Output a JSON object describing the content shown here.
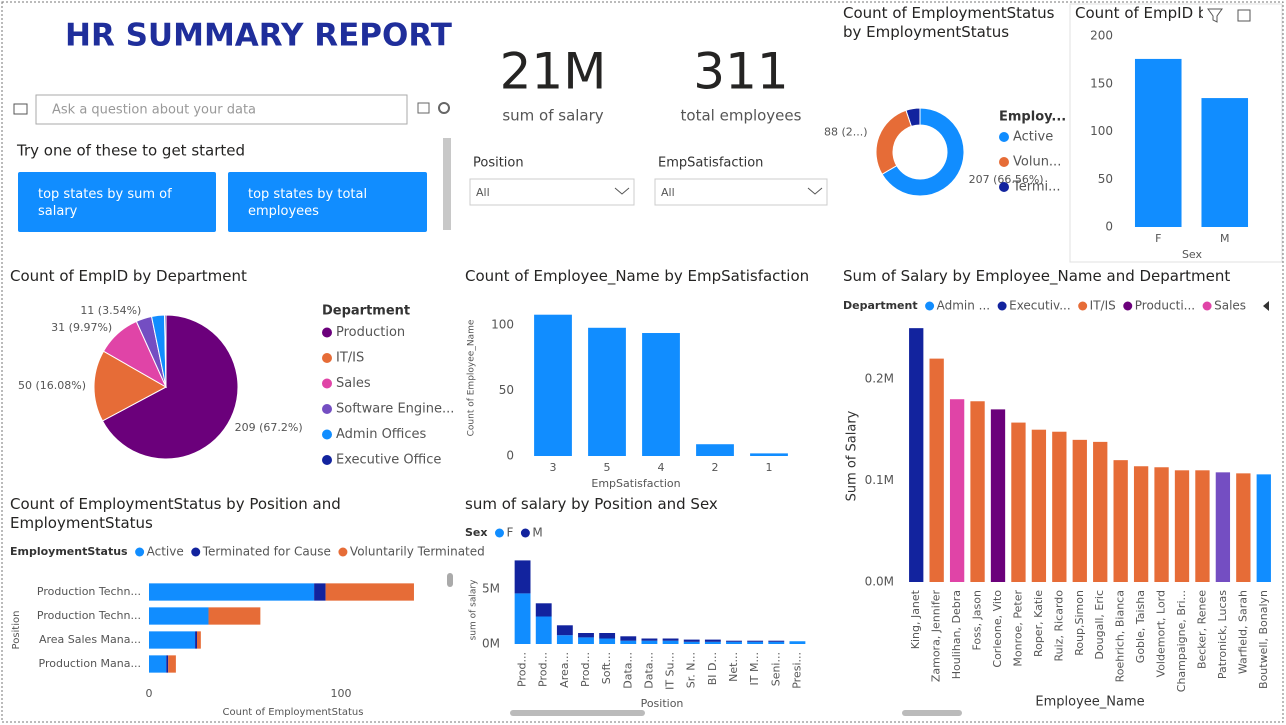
{
  "header": {
    "title": "HR SUMMARY REPORT"
  },
  "kpis": [
    {
      "value": "21M",
      "label": "sum of salary"
    },
    {
      "value": "311",
      "label": "total employees"
    }
  ],
  "qa": {
    "placeholder": "Ask a question about your data",
    "prompt": "Try one of these to get started",
    "suggestions": [
      "top states by sum of salary",
      "top states by total employees"
    ]
  },
  "slicers": [
    {
      "label": "Position",
      "value": "All"
    },
    {
      "label": "EmpSatisfaction",
      "value": "All"
    }
  ],
  "chart_data": [
    {
      "type": "donut",
      "title": "Count of EmploymentStatus by EmploymentStatus",
      "legend_title": "Employ...",
      "categories": [
        "Active",
        "Volun...",
        "Termi..."
      ],
      "values": [
        207,
        88,
        16
      ],
      "value_labels": [
        "207 (66.56%)",
        "88 (2...)",
        null
      ],
      "colors": [
        "#118DFF",
        "#E66C37",
        "#12239E"
      ]
    },
    {
      "type": "bar",
      "title": "Count of EmpID b",
      "x_label": "Sex",
      "categories": [
        "F",
        "M"
      ],
      "values": [
        176,
        135
      ],
      "color": "#118DFF",
      "ylim": [
        0,
        200
      ],
      "yticks": [
        0,
        50,
        100,
        150,
        200
      ],
      "grid": false
    },
    {
      "type": "pie",
      "title": "Count of EmpID by Department",
      "legend_title": "Department",
      "categories": [
        "Production",
        "IT/IS",
        "Sales",
        "Software Engine...",
        "Admin Offices",
        "Executive Office"
      ],
      "values": [
        209,
        50,
        31,
        11,
        9,
        1
      ],
      "value_labels": [
        "209 (67.2%)",
        "50 (16.08%)",
        "31 (9.97%)",
        "11 (3.54%)",
        null,
        null
      ],
      "colors": [
        "#6B007B",
        "#E66C37",
        "#E044A7",
        "#744EC2",
        "#118DFF",
        "#12239E"
      ]
    },
    {
      "type": "bar",
      "title": "Count of Employee_Name by EmpSatisfaction",
      "x_label": "EmpSatisfaction",
      "y_label": "Count of Employee_Name",
      "categories": [
        "3",
        "5",
        "4",
        "2",
        "1"
      ],
      "values": [
        108,
        98,
        94,
        9,
        2
      ],
      "color": "#118DFF",
      "ylim": [
        0,
        120
      ],
      "yticks": [
        0,
        50,
        100
      ],
      "grid": false
    },
    {
      "type": "bar",
      "title": "Sum of Salary by Employee_Name and Department",
      "x_label": "Employee_Name",
      "y_label": "Sum of Salary",
      "legend_title": "Department",
      "legend": [
        {
          "name": "Admin ...",
          "color": "#118DFF"
        },
        {
          "name": "Executiv...",
          "color": "#12239E"
        },
        {
          "name": "IT/IS",
          "color": "#E66C37"
        },
        {
          "name": "Producti...",
          "color": "#6B007B"
        },
        {
          "name": "Sales",
          "color": "#E044A7"
        }
      ],
      "categories": [
        "King, Janet",
        "Zamora, Jennifer",
        "Houlihan, Debra",
        "Foss, Jason",
        "Corleone, Vito",
        "Monroe, Peter",
        "Roper, Katie",
        "Ruiz, Ricardo",
        "Roup,Simon",
        "Dougall, Eric",
        "Roehrich, Bianca",
        "Goble, Taisha",
        "Voldemort, Lord",
        "Champaigne, Bri...",
        "Becker, Renee",
        "Patronick, Lucas",
        "Warfield, Sarah",
        "Boutwell, Bonalyn"
      ],
      "values": [
        250000,
        220000,
        180000,
        178000,
        170000,
        157000,
        150000,
        148000,
        140000,
        138000,
        120000,
        114000,
        113000,
        110000,
        110000,
        108000,
        107000,
        106000
      ],
      "colors": [
        "#12239E",
        "#E66C37",
        "#E044A7",
        "#E66C37",
        "#6B007B",
        "#E66C37",
        "#E66C37",
        "#E66C37",
        "#E66C37",
        "#E66C37",
        "#E66C37",
        "#E66C37",
        "#E66C37",
        "#E66C37",
        "#E66C37",
        "#744EC2",
        "#E66C37",
        "#118DFF"
      ],
      "ylim": [
        0,
        260000
      ],
      "yticks": [
        {
          "value": 0,
          "label": "0.0M"
        },
        {
          "value": 100000,
          "label": "0.1M"
        },
        {
          "value": 200000,
          "label": "0.2M"
        }
      ],
      "grid": false
    },
    {
      "type": "hbar",
      "title": "Count of EmploymentStatus by Position and EmploymentStatus",
      "legend_title": "EmploymentStatus",
      "x_label": "Count of EmploymentStatus",
      "y_label": "Position",
      "categories": [
        "Production Techn...",
        "Production Techn...",
        "Area Sales Mana...",
        "Production Mana..."
      ],
      "series": [
        {
          "name": "Active",
          "color": "#118DFF",
          "values": [
            86,
            31,
            24,
            9
          ]
        },
        {
          "name": "Terminated for Cause",
          "color": "#12239E",
          "values": [
            6,
            0,
            1,
            1
          ]
        },
        {
          "name": "Voluntarily Terminated",
          "color": "#E66C37",
          "values": [
            46,
            27,
            2,
            4
          ]
        }
      ],
      "xlim": [
        0,
        150
      ],
      "xticks": [
        0,
        100
      ],
      "grid": false
    },
    {
      "type": "bar",
      "title": "sum of salary by Position and Sex",
      "legend_title": "Sex",
      "x_label": "Position",
      "y_label": "sum of salary",
      "categories": [
        "Prod...",
        "Prod...",
        "Area...",
        "Prod...",
        "Soft...",
        "Data...",
        "Data...",
        "IT Su...",
        "Sr. N...",
        "BI D...",
        "Net...",
        "IT M...",
        "Seni...",
        "Presi..."
      ],
      "series": [
        {
          "name": "F",
          "color": "#118DFF",
          "values": [
            4600000,
            2500000,
            800000,
            600000,
            500000,
            300000,
            300000,
            300000,
            200000,
            200000,
            200000,
            200000,
            200000,
            250000
          ]
        },
        {
          "name": "M",
          "color": "#12239E",
          "values": [
            3000000,
            1200000,
            900000,
            400000,
            500000,
            400000,
            200000,
            200000,
            200000,
            200000,
            100000,
            100000,
            100000,
            0
          ]
        }
      ],
      "ylim": [
        0,
        8000000
      ],
      "yticks": [
        {
          "value": 0,
          "label": "0M"
        },
        {
          "value": 5000000,
          "label": "5M"
        }
      ],
      "grid": false
    }
  ]
}
